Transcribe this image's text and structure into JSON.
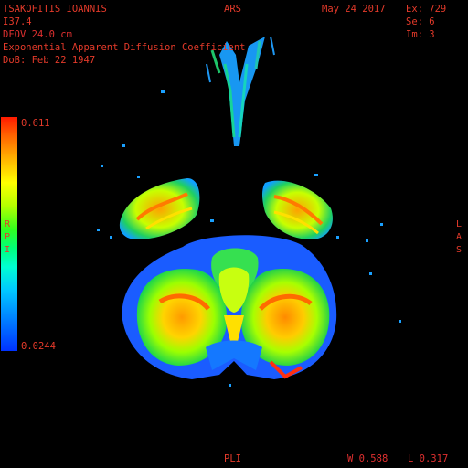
{
  "patient": {
    "name": "TSAKOFITIS IOANNIS",
    "id": "I37.4",
    "dfov_label": "DFOV",
    "dfov_value": "24.0",
    "dfov_unit": "cm",
    "series_desc": "Exponential Apparent Diffusion Coefficient",
    "dob": "DoB: Feb 22 1947"
  },
  "exam": {
    "date": "May 24 2017",
    "ex": "Ex: 729",
    "se": "Se: 6",
    "im": "Im: 3"
  },
  "orientation": {
    "top": "ARS",
    "bottom": "PLI",
    "left": [
      "R",
      "P",
      "I"
    ],
    "right": [
      "L",
      "A",
      "S"
    ]
  },
  "color_scale": {
    "max": "0.611",
    "min": "0.0244"
  },
  "window": {
    "w_label": "W",
    "w_value": "0.588",
    "l_label": "L",
    "l_value": "0.317"
  },
  "colors": {
    "overlay_text": "#e43a2a",
    "overlay_value": "#f2f2f2",
    "window_value": "#f2f230",
    "background": "#000000"
  }
}
